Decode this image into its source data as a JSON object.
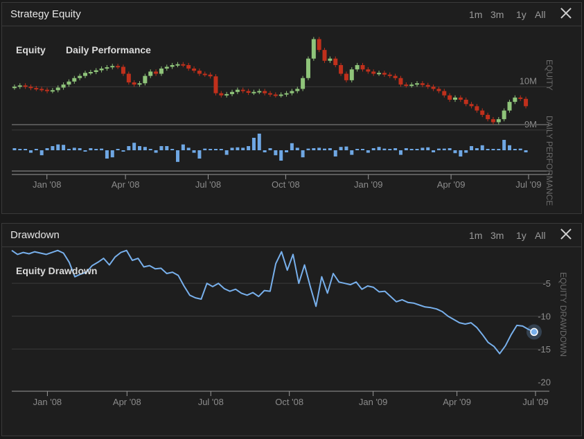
{
  "panels": {
    "equity": {
      "title": "Strategy Equity",
      "ranges": [
        "1m",
        "3m",
        "1y",
        "All"
      ],
      "legend": [
        "Equity",
        "Daily Performance"
      ],
      "axis_titles": [
        "EQUITY",
        "DAILY PERFORMANCE"
      ]
    },
    "drawdown": {
      "title": "Drawdown",
      "ranges": [
        "1m",
        "3m",
        "1y",
        "All"
      ],
      "legend": [
        "Equity Drawdown"
      ],
      "axis_titles": [
        "EQUITY DRAWDOWN"
      ]
    }
  },
  "chart_data": [
    {
      "type": "candlestick",
      "series": [
        {
          "name": "Equity",
          "color_up": "#8fc47a",
          "color_down": "#c0301c"
        }
      ],
      "x_ticks": [
        "Jan '08",
        "Apr '08",
        "Jul '08",
        "Oct '08",
        "Jan '09",
        "Apr '09",
        "Jul '09"
      ],
      "y_ticks": [
        "10M",
        "9M"
      ],
      "ylim": [
        8.9,
        11.3
      ],
      "close_values": [
        10.0,
        10.03,
        10.0,
        9.97,
        9.95,
        9.93,
        9.9,
        9.92,
        9.98,
        10.05,
        10.12,
        10.2,
        10.25,
        10.32,
        10.34,
        10.38,
        10.42,
        10.45,
        10.48,
        10.46,
        10.3,
        10.1,
        10.05,
        10.08,
        10.25,
        10.35,
        10.3,
        10.42,
        10.46,
        10.5,
        10.52,
        10.5,
        10.42,
        10.37,
        10.3,
        10.28,
        10.24,
        9.85,
        9.8,
        9.83,
        9.88,
        9.93,
        9.9,
        9.86,
        9.88,
        9.9,
        9.85,
        9.82,
        9.8,
        9.82,
        9.85,
        9.9,
        9.95,
        10.2,
        10.65,
        11.1,
        10.85,
        10.6,
        10.65,
        10.5,
        10.3,
        10.15,
        10.4,
        10.5,
        10.4,
        10.35,
        10.3,
        10.32,
        10.28,
        10.25,
        10.2,
        10.05,
        10.03,
        10.05,
        10.08,
        10.04,
        10.0,
        9.95,
        9.9,
        9.8,
        9.7,
        9.75,
        9.7,
        9.6,
        9.55,
        9.45,
        9.35,
        9.25,
        9.18,
        9.25,
        9.45,
        9.65,
        9.75,
        9.72,
        9.55
      ],
      "color": "#8fc47a"
    },
    {
      "type": "bar",
      "series": [
        {
          "name": "Daily Performance",
          "color": "#6fa7e3"
        }
      ],
      "ylim": [
        -0.35,
        0.5
      ],
      "values": [
        0.05,
        0.03,
        0.01,
        -0.06,
        0.03,
        -0.12,
        0.05,
        0.1,
        0.14,
        0.13,
        0.03,
        0.06,
        0.05,
        -0.02,
        0.05,
        0.03,
        0.04,
        -0.2,
        -0.17,
        0.03,
        -0.03,
        0.1,
        0.18,
        0.1,
        0.08,
        0.02,
        -0.06,
        0.1,
        0.1,
        0.03,
        -0.28,
        0.14,
        0.06,
        -0.06,
        -0.2,
        0.04,
        0.02,
        0.02,
        0.01,
        -0.11,
        0.06,
        0.07,
        0.06,
        0.1,
        0.3,
        0.4,
        -0.05,
        0.05,
        -0.12,
        -0.25,
        -0.05,
        0.17,
        0.06,
        -0.17,
        0.04,
        0.05,
        0.06,
        0.04,
        0.05,
        -0.15,
        0.08,
        0.09,
        -0.11,
        0.03,
        0.03,
        -0.06,
        0.05,
        0.08,
        0.04,
        0.03,
        0.05,
        -0.11,
        0.05,
        0.03,
        0.03,
        0.06,
        0.07,
        -0.05,
        0.04,
        0.04,
        0.05,
        -0.07,
        -0.15,
        -0.06,
        0.1,
        0.05,
        0.12,
        0.03,
        0.01,
        0.03,
        0.25,
        0.12,
        0.01,
        0.04,
        -0.05
      ]
    },
    {
      "type": "line",
      "series": [
        {
          "name": "Equity Drawdown",
          "color": "#78b0ec"
        }
      ],
      "x_ticks": [
        "Jan '08",
        "Apr '08",
        "Jul '08",
        "Oct '08",
        "Jan '09",
        "Apr '09",
        "Jul '09"
      ],
      "y_ticks": [
        "-5",
        "-10",
        "-15",
        "-20"
      ],
      "ylim": [
        -21,
        0.5
      ],
      "values": [
        0,
        -0.6,
        -0.3,
        -0.5,
        -0.2,
        -0.4,
        -0.6,
        -0.3,
        0,
        -0.4,
        -1.8,
        -4.0,
        -3.6,
        -3.3,
        -2.3,
        -1.8,
        -1.2,
        -2.2,
        -1.0,
        -0.3,
        0,
        -1.5,
        -1.2,
        -2.5,
        -2.3,
        -2.8,
        -2.7,
        -3.5,
        -3.3,
        -3.8,
        -5.4,
        -6.8,
        -7.2,
        -7.4,
        -5.0,
        -5.5,
        -5.0,
        -5.8,
        -6.2,
        -5.9,
        -6.5,
        -6.8,
        -6.4,
        -7.0,
        -6.1,
        -6.2,
        -2.0,
        -0.2,
        -3.0,
        -0.6,
        -5.0,
        -2.2,
        -5.5,
        -8.5,
        -4.0,
        -6.5,
        -3.5,
        -4.8,
        -5.0,
        -5.2,
        -4.8,
        -5.9,
        -5.4,
        -5.6,
        -6.3,
        -6.2,
        -7.0,
        -7.8,
        -7.5,
        -7.9,
        -8.0,
        -8.3,
        -8.6,
        -8.7,
        -8.9,
        -9.3,
        -10.0,
        -10.5,
        -11.0,
        -11.2,
        -11.0,
        -11.7,
        -12.8,
        -14.0,
        -14.6,
        -15.7,
        -14.5,
        -12.8,
        -11.4,
        -11.5,
        -12.0,
        -12.4
      ],
      "highlight_point": -12.4
    }
  ]
}
